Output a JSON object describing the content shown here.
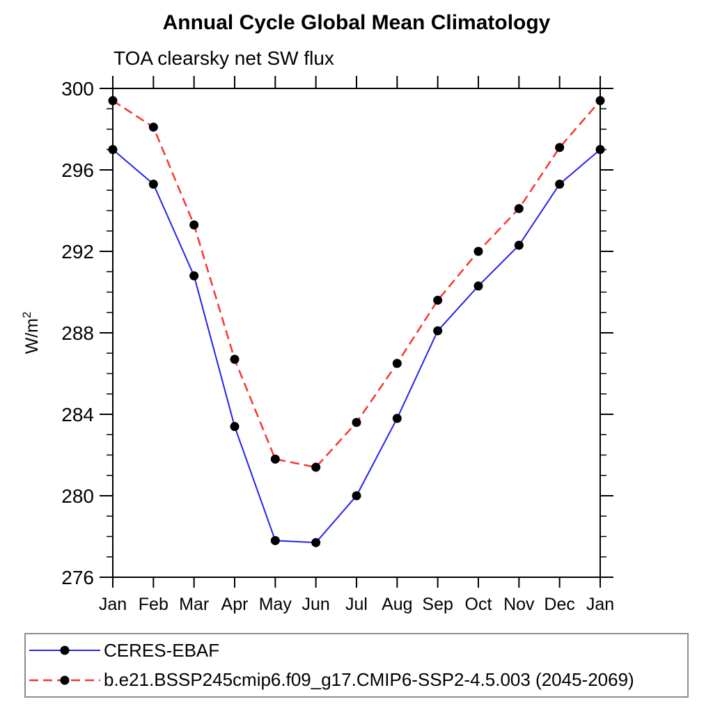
{
  "chart_data": {
    "type": "line",
    "title": "Annual Cycle Global Mean Climatology",
    "subtitle": "TOA clearsky net SW flux",
    "ylabel_base": "W/m",
    "ylabel_exponent": "2",
    "x_tick_labels": [
      "Jan",
      "Feb",
      "Mar",
      "Apr",
      "May",
      "Jun",
      "Jul",
      "Aug",
      "Sep",
      "Oct",
      "Nov",
      "Dec",
      "Jan"
    ],
    "ylim": [
      276,
      300
    ],
    "y_major_step": 4,
    "y_minor_step": 1,
    "y_tick_labels": [
      "276",
      "280",
      "284",
      "288",
      "292",
      "296",
      "300"
    ],
    "grid": "off",
    "legend_position": "bottom-left-box",
    "marker": "filled-circle",
    "marker_color": "#000000",
    "series": [
      {
        "name": "CERES-EBAF",
        "color": "#2222ec",
        "style": "solid",
        "values": [
          297.0,
          295.3,
          290.8,
          283.4,
          277.8,
          277.7,
          280.0,
          283.8,
          288.1,
          290.3,
          292.3,
          295.3,
          297.0
        ]
      },
      {
        "name": "b.e21.BSSP245cmip6.f09_g17.CMIP6-SSP2-4.5.003 (2045-2069)",
        "color": "#f8352c",
        "style": "dashed",
        "values": [
          299.4,
          298.1,
          293.3,
          286.7,
          281.8,
          281.4,
          283.6,
          286.5,
          289.6,
          292.0,
          294.1,
          297.1,
          299.4
        ]
      }
    ]
  }
}
